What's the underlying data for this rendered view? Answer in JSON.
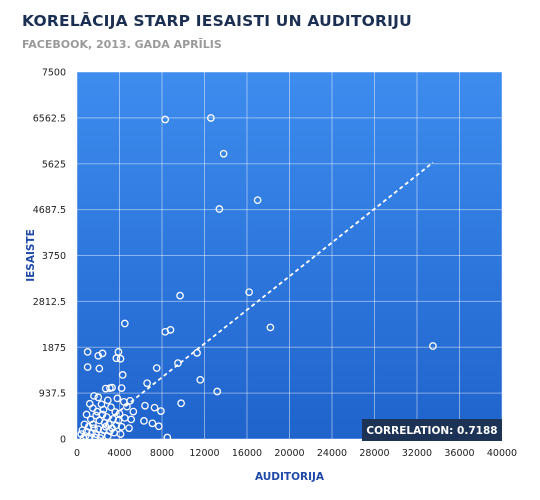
{
  "chart_data": {
    "type": "scatter",
    "title": "KORELĀCIJA STARP IESAISTI UN AUDITORIJU",
    "subtitle": "FACEBOOK, 2013. GADA APRĪLIS",
    "xlabel": "AUDITORIJA",
    "ylabel": "IESAISTE",
    "xlim": [
      0,
      40000
    ],
    "ylim": [
      0,
      7500
    ],
    "x_ticks": [
      "0",
      "4000",
      "8000",
      "12000",
      "16000",
      "20000",
      "24000",
      "28000",
      "32000",
      "36000",
      "40000"
    ],
    "y_ticks": [
      "0",
      "937.5",
      "1875",
      "2812.5",
      "3750",
      "4687.5",
      "5625",
      "6562.5",
      "7500"
    ],
    "grid": true,
    "correlation_label": "CORRELATION: 0.7188",
    "colors": {
      "plot_gradient_top": "#3d8cee",
      "plot_gradient_bottom": "#1f63cc",
      "grid": "#ffffff",
      "marker": "#ffffff",
      "trendline": "#ffffff",
      "correlation_box": "#1d3355"
    },
    "trendline": {
      "x": [
        3000,
        33500
      ],
      "y": [
        400,
        5650
      ]
    },
    "points": [
      {
        "x": 8300,
        "y": 6530
      },
      {
        "x": 12600,
        "y": 6560
      },
      {
        "x": 13800,
        "y": 5830
      },
      {
        "x": 17000,
        "y": 4880
      },
      {
        "x": 13400,
        "y": 4700
      },
      {
        "x": 9700,
        "y": 2930
      },
      {
        "x": 16200,
        "y": 3000
      },
      {
        "x": 4500,
        "y": 2360
      },
      {
        "x": 8800,
        "y": 2230
      },
      {
        "x": 8300,
        "y": 2190
      },
      {
        "x": 18200,
        "y": 2280
      },
      {
        "x": 33500,
        "y": 1900
      },
      {
        "x": 1000,
        "y": 1780
      },
      {
        "x": 2400,
        "y": 1750
      },
      {
        "x": 2000,
        "y": 1700
      },
      {
        "x": 3900,
        "y": 1780
      },
      {
        "x": 3700,
        "y": 1650
      },
      {
        "x": 4100,
        "y": 1640
      },
      {
        "x": 11300,
        "y": 1760
      },
      {
        "x": 9500,
        "y": 1550
      },
      {
        "x": 1000,
        "y": 1470
      },
      {
        "x": 2100,
        "y": 1440
      },
      {
        "x": 7500,
        "y": 1450
      },
      {
        "x": 4300,
        "y": 1310
      },
      {
        "x": 11600,
        "y": 1210
      },
      {
        "x": 6600,
        "y": 1140
      },
      {
        "x": 3300,
        "y": 1050
      },
      {
        "x": 3100,
        "y": 1040
      },
      {
        "x": 2700,
        "y": 1030
      },
      {
        "x": 4200,
        "y": 1040
      },
      {
        "x": 13200,
        "y": 970
      },
      {
        "x": 1600,
        "y": 880
      },
      {
        "x": 2000,
        "y": 850
      },
      {
        "x": 2900,
        "y": 790
      },
      {
        "x": 3800,
        "y": 830
      },
      {
        "x": 4400,
        "y": 760
      },
      {
        "x": 5000,
        "y": 780
      },
      {
        "x": 9800,
        "y": 730
      },
      {
        "x": 1200,
        "y": 720
      },
      {
        "x": 2300,
        "y": 710
      },
      {
        "x": 3200,
        "y": 650
      },
      {
        "x": 4700,
        "y": 660
      },
      {
        "x": 6400,
        "y": 680
      },
      {
        "x": 7300,
        "y": 640
      },
      {
        "x": 7900,
        "y": 570
      },
      {
        "x": 1500,
        "y": 630
      },
      {
        "x": 2500,
        "y": 600
      },
      {
        "x": 3600,
        "y": 550
      },
      {
        "x": 5300,
        "y": 560
      },
      {
        "x": 4000,
        "y": 520
      },
      {
        "x": 900,
        "y": 500
      },
      {
        "x": 1800,
        "y": 480
      },
      {
        "x": 2800,
        "y": 450
      },
      {
        "x": 3400,
        "y": 410
      },
      {
        "x": 4500,
        "y": 430
      },
      {
        "x": 5100,
        "y": 400
      },
      {
        "x": 6300,
        "y": 370
      },
      {
        "x": 7100,
        "y": 320
      },
      {
        "x": 7700,
        "y": 260
      },
      {
        "x": 1300,
        "y": 400
      },
      {
        "x": 2100,
        "y": 380
      },
      {
        "x": 2600,
        "y": 330
      },
      {
        "x": 3000,
        "y": 300
      },
      {
        "x": 3700,
        "y": 280
      },
      {
        "x": 4200,
        "y": 250
      },
      {
        "x": 4900,
        "y": 220
      },
      {
        "x": 700,
        "y": 300
      },
      {
        "x": 1100,
        "y": 250
      },
      {
        "x": 1600,
        "y": 220
      },
      {
        "x": 2000,
        "y": 200
      },
      {
        "x": 2500,
        "y": 180
      },
      {
        "x": 3100,
        "y": 160
      },
      {
        "x": 3500,
        "y": 130
      },
      {
        "x": 4100,
        "y": 100
      },
      {
        "x": 500,
        "y": 180
      },
      {
        "x": 900,
        "y": 150
      },
      {
        "x": 1400,
        "y": 120
      },
      {
        "x": 1800,
        "y": 100
      },
      {
        "x": 2300,
        "y": 80
      },
      {
        "x": 2900,
        "y": 60
      },
      {
        "x": 400,
        "y": 100
      },
      {
        "x": 800,
        "y": 60
      },
      {
        "x": 1200,
        "y": 40
      },
      {
        "x": 1700,
        "y": 30
      },
      {
        "x": 2200,
        "y": 20
      },
      {
        "x": 600,
        "y": 20
      },
      {
        "x": 1500,
        "y": 300
      },
      {
        "x": 2700,
        "y": 250
      },
      {
        "x": 3300,
        "y": 220
      },
      {
        "x": 2400,
        "y": 500
      },
      {
        "x": 1900,
        "y": 560
      },
      {
        "x": 3900,
        "y": 380
      },
      {
        "x": 8500,
        "y": 30
      }
    ]
  }
}
